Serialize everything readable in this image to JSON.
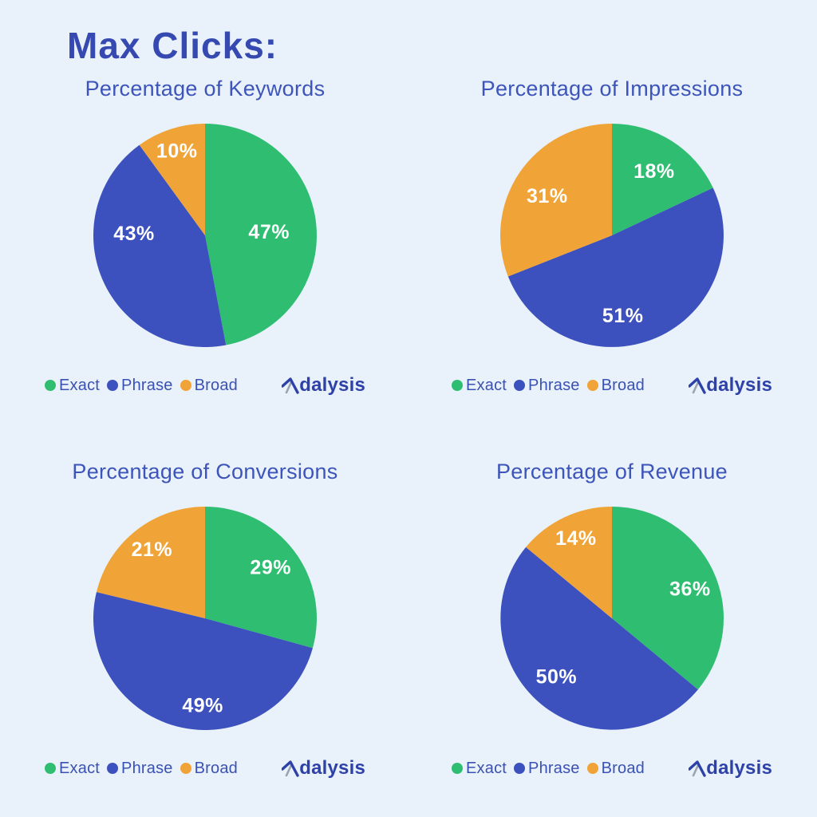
{
  "heading": "Max Clicks:",
  "logo": {
    "text": "Adalysis",
    "mark": "A",
    "rest": "dalysis"
  },
  "colors": {
    "background": "#E9F1FA",
    "heading": "#3549B1",
    "subtitle": "#3D55BA",
    "legend-text": "#3A51B5",
    "logo-blue": "#2E41A8",
    "logo-gray": "#9AA4B0",
    "slice-label": "#FFFFFF"
  },
  "chart_data": {
    "type": "pie",
    "legend_labels": [
      "Exact",
      "Phrase",
      "Broad"
    ],
    "palette": [
      "#2FBE71",
      "#3C51BD",
      "#F0A437"
    ],
    "value_suffix": "%",
    "start_angle_deg": 0,
    "direction": "clockwise",
    "legend_position": "bottom-left",
    "charts": [
      {
        "title": "Percentage of Keywords",
        "values": [
          47,
          43,
          10
        ],
        "label_pos": [
          [
            0.573,
            -0.028
          ],
          [
            -0.636,
            -0.014
          ],
          [
            -0.252,
            -0.755
          ]
        ]
      },
      {
        "title": "Percentage of Impressions",
        "values": [
          18,
          51,
          31
        ],
        "label_pos": [
          [
            0.378,
            -0.573
          ],
          [
            0.098,
            0.72
          ],
          [
            -0.58,
            -0.35
          ]
        ]
      },
      {
        "title": "Percentage of Conversions",
        "values": [
          29,
          49,
          21
        ],
        "label_pos": [
          [
            0.587,
            -0.454
          ],
          [
            -0.021,
            0.783
          ],
          [
            -0.476,
            -0.615
          ]
        ]
      },
      {
        "title": "Percentage of Revenue",
        "values": [
          36,
          50,
          14
        ],
        "label_pos": [
          [
            0.699,
            -0.259
          ],
          [
            -0.497,
            0.524
          ],
          [
            -0.322,
            -0.713
          ]
        ]
      }
    ]
  }
}
